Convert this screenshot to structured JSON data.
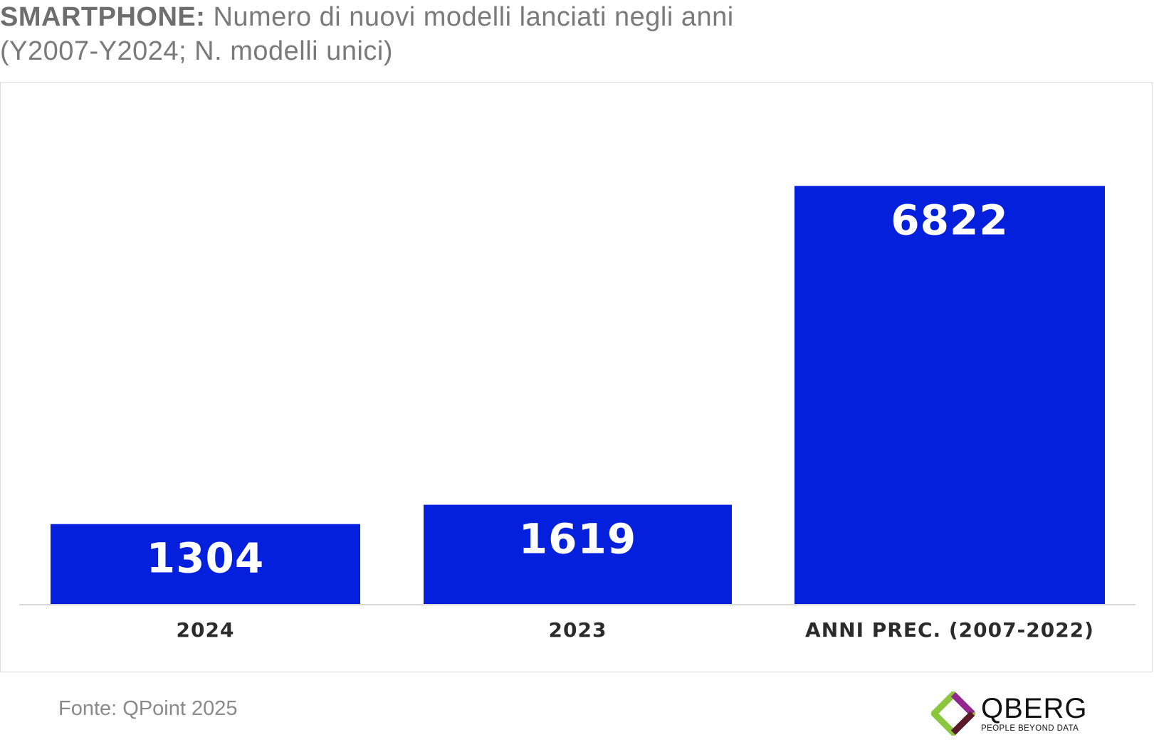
{
  "title": {
    "bold": "SMARTPHONE:",
    "rest": " Numero di nuovi modelli lanciati negli anni",
    "line2": "(Y2007-Y2024; N. modelli unici)"
  },
  "source": "Fonte: QPoint 2025",
  "logo": {
    "word": "QBERG",
    "tagline": "PEOPLE BEYOND DATA"
  },
  "colors": {
    "bar": "#0520dd",
    "bar_label": "#ffffff",
    "axis_label": "#2b2b2b",
    "baseline": "#d9d9d9",
    "title": "#7a7a7a",
    "logo_green": "#8cc63f",
    "logo_purple": "#93278f",
    "logo_dark": "#5a1a2a"
  },
  "chart_data": {
    "type": "bar",
    "categories": [
      "2024",
      "2023",
      "ANNI PREC. (2007-2022)"
    ],
    "values": [
      1304,
      1619,
      6822
    ],
    "title": "SMARTPHONE: Numero di nuovi modelli lanciati negli anni",
    "subtitle": "(Y2007-Y2024; N. modelli unici)",
    "xlabel": "",
    "ylabel": "",
    "ylim": [
      0,
      7000
    ],
    "grid": false,
    "legend": "none",
    "data_labels": "inside-top"
  }
}
